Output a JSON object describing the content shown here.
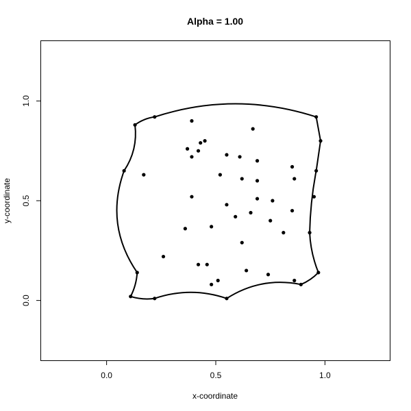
{
  "chart_data": {
    "type": "scatter",
    "title": "Alpha = 1.00",
    "xlabel": "x-coordinate",
    "ylabel": "y-coordinate",
    "xlim": [
      -0.3,
      1.3
    ],
    "ylim": [
      -0.3,
      1.3
    ],
    "x_ticks": [
      "0.0",
      "0.5",
      "1.0"
    ],
    "y_ticks": [
      "0.0",
      "0.5",
      "1.0"
    ],
    "x_tick_values": [
      0,
      0.5,
      1
    ],
    "y_tick_values": [
      0,
      0.5,
      1
    ],
    "grid": false,
    "points": [
      [
        0.11,
        0.02
      ],
      [
        0.22,
        0.01
      ],
      [
        0.55,
        0.01
      ],
      [
        0.89,
        0.08
      ],
      [
        0.97,
        0.14
      ],
      [
        0.93,
        0.34
      ],
      [
        0.96,
        0.65
      ],
      [
        0.98,
        0.8
      ],
      [
        0.96,
        0.92
      ],
      [
        0.22,
        0.92
      ],
      [
        0.13,
        0.88
      ],
      [
        0.08,
        0.65
      ],
      [
        0.14,
        0.14
      ],
      [
        0.39,
        0.9
      ],
      [
        0.67,
        0.86
      ],
      [
        0.37,
        0.76
      ],
      [
        0.43,
        0.79
      ],
      [
        0.45,
        0.8
      ],
      [
        0.42,
        0.75
      ],
      [
        0.39,
        0.72
      ],
      [
        0.17,
        0.63
      ],
      [
        0.55,
        0.73
      ],
      [
        0.61,
        0.72
      ],
      [
        0.69,
        0.7
      ],
      [
        0.85,
        0.67
      ],
      [
        0.52,
        0.63
      ],
      [
        0.62,
        0.61
      ],
      [
        0.69,
        0.6
      ],
      [
        0.86,
        0.61
      ],
      [
        0.39,
        0.52
      ],
      [
        0.69,
        0.51
      ],
      [
        0.76,
        0.5
      ],
      [
        0.95,
        0.52
      ],
      [
        0.55,
        0.48
      ],
      [
        0.85,
        0.45
      ],
      [
        0.66,
        0.44
      ],
      [
        0.59,
        0.42
      ],
      [
        0.75,
        0.4
      ],
      [
        0.48,
        0.37
      ],
      [
        0.36,
        0.36
      ],
      [
        0.81,
        0.34
      ],
      [
        0.62,
        0.29
      ],
      [
        0.26,
        0.22
      ],
      [
        0.42,
        0.18
      ],
      [
        0.46,
        0.18
      ],
      [
        0.64,
        0.15
      ],
      [
        0.74,
        0.13
      ],
      [
        0.51,
        0.1
      ],
      [
        0.48,
        0.08
      ],
      [
        0.86,
        0.1
      ]
    ],
    "hull": [
      {
        "from": [
          0.11,
          0.02
        ],
        "to": [
          0.22,
          0.01
        ],
        "bulge": 0.006
      },
      {
        "from": [
          0.22,
          0.01
        ],
        "to": [
          0.55,
          0.01
        ],
        "bulge": -0.028
      },
      {
        "from": [
          0.55,
          0.01
        ],
        "to": [
          0.89,
          0.08
        ],
        "bulge": -0.035
      },
      {
        "from": [
          0.89,
          0.08
        ],
        "to": [
          0.97,
          0.14
        ],
        "bulge": 0.005
      },
      {
        "from": [
          0.97,
          0.14
        ],
        "to": [
          0.93,
          0.34
        ],
        "bulge": -0.008
      },
      {
        "from": [
          0.93,
          0.34
        ],
        "to": [
          0.96,
          0.65
        ],
        "bulge": -0.006
      },
      {
        "from": [
          0.96,
          0.65
        ],
        "to": [
          0.98,
          0.8
        ],
        "bulge": 0.0
      },
      {
        "from": [
          0.98,
          0.8
        ],
        "to": [
          0.96,
          0.92
        ],
        "bulge": 0.0
      },
      {
        "from": [
          0.96,
          0.92
        ],
        "to": [
          0.22,
          0.92
        ],
        "bulge": 0.06
      },
      {
        "from": [
          0.22,
          0.92
        ],
        "to": [
          0.13,
          0.88
        ],
        "bulge": 0.006
      },
      {
        "from": [
          0.13,
          0.88
        ],
        "to": [
          0.08,
          0.65
        ],
        "bulge": -0.02
      },
      {
        "from": [
          0.08,
          0.65
        ],
        "to": [
          0.14,
          0.14
        ],
        "bulge": 0.06
      },
      {
        "from": [
          0.14,
          0.14
        ],
        "to": [
          0.11,
          0.02
        ],
        "bulge": -0.006
      }
    ]
  }
}
